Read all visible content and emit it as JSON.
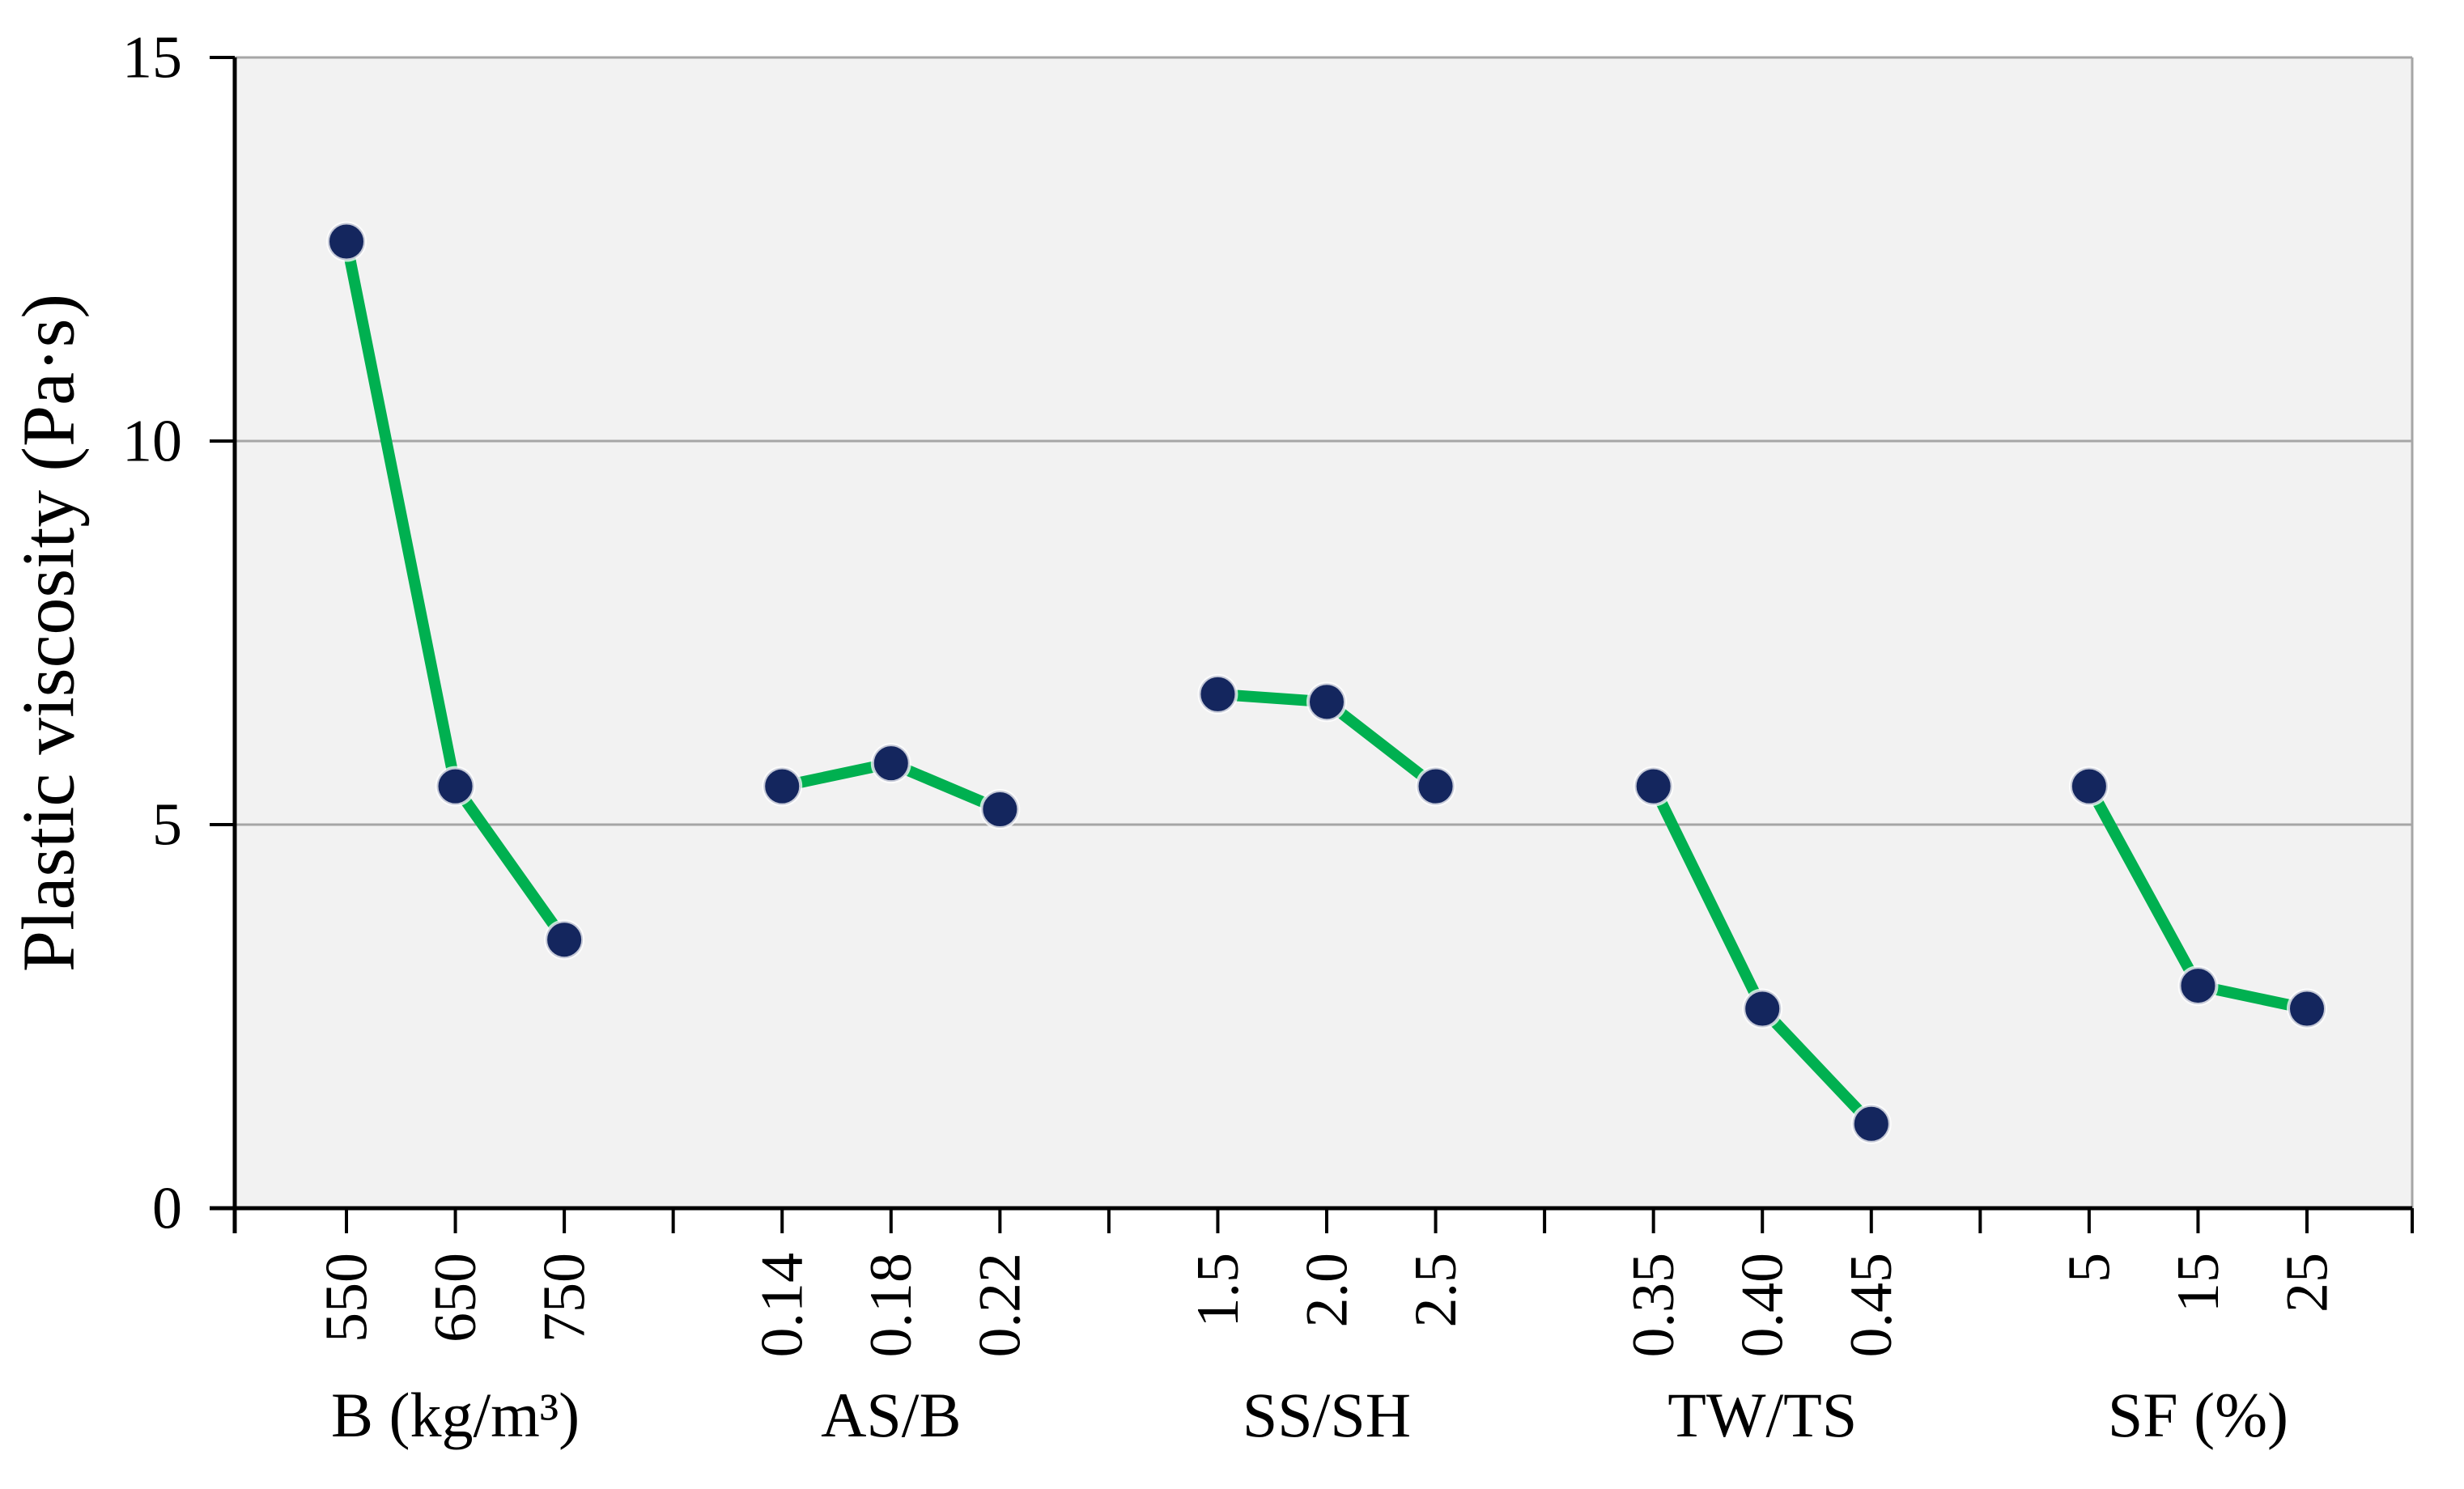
{
  "figure": {
    "background": "#FFFFFF"
  },
  "chart_data": {
    "type": "line",
    "title": "",
    "ylabel": "Plastic viscosity (Pa·s)",
    "xlabel": "",
    "ylim": [
      0,
      15
    ],
    "yticks": [
      0,
      5,
      10,
      15
    ],
    "gridline_values": [
      5,
      10
    ],
    "grid": "horizontal",
    "legend_position": "none",
    "groups": [
      {
        "label": "B (kg/m³)",
        "categories": [
          "550",
          "650",
          "750"
        ],
        "values": [
          12.6,
          5.5,
          3.5
        ]
      },
      {
        "label": "AS/B",
        "categories": [
          "0.14",
          "0.18",
          "0.22"
        ],
        "values": [
          5.5,
          5.8,
          5.2
        ]
      },
      {
        "label": "SS/SH",
        "categories": [
          "1.5",
          "2.0",
          "2.5"
        ],
        "values": [
          6.7,
          6.6,
          5.5
        ]
      },
      {
        "label": "TW/TS",
        "categories": [
          "0.35",
          "0.40",
          "0.45"
        ],
        "values": [
          5.5,
          2.6,
          1.1
        ]
      },
      {
        "label": "SF (%)",
        "categories": [
          "5",
          "15",
          "25"
        ],
        "values": [
          5.5,
          2.9,
          2.6
        ]
      }
    ],
    "colors": {
      "line": "#00B050",
      "marker": "#14265E",
      "marker_rim": "#FFFFFF",
      "plot_background": "#F2F2F2",
      "gridline": "#A6A6A6",
      "axis": "#000000",
      "text": "#000000",
      "page_background": "#FFFFFF"
    }
  }
}
